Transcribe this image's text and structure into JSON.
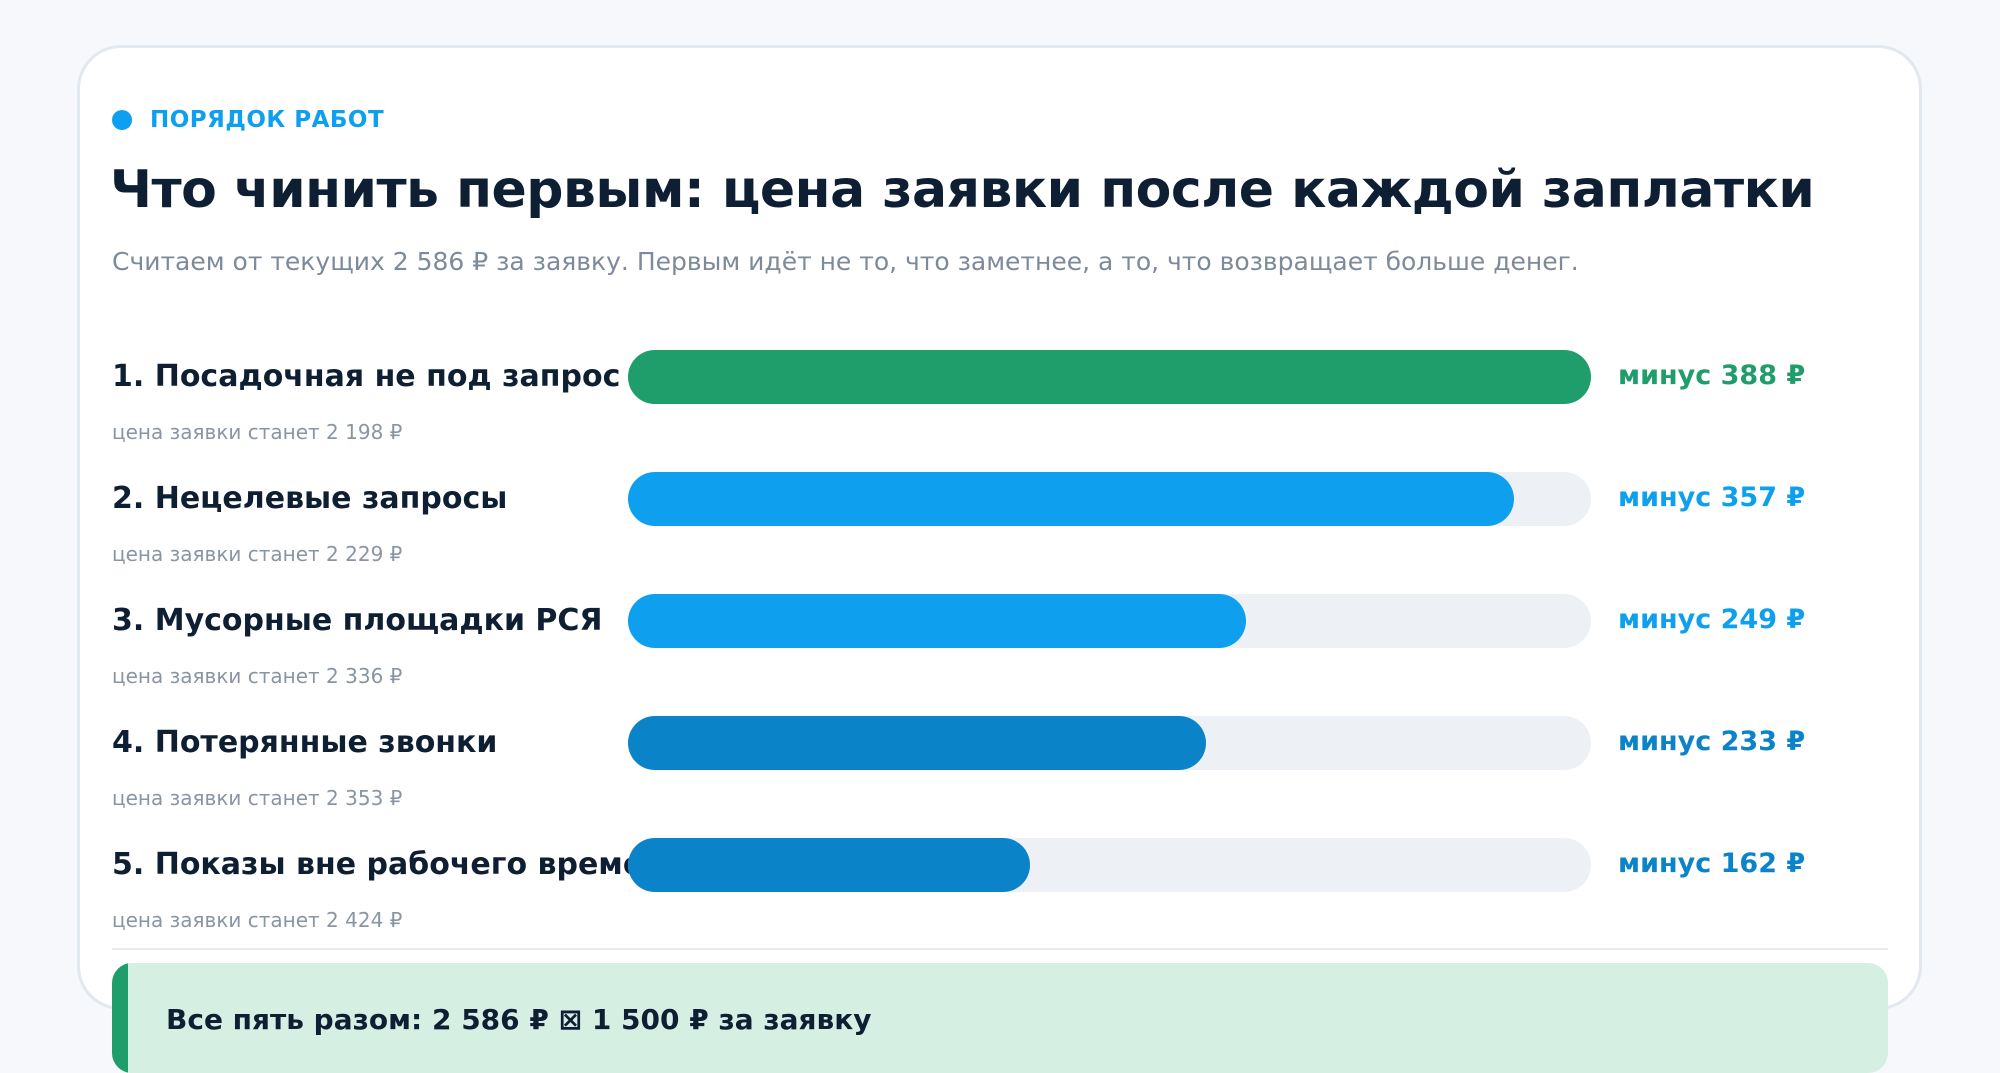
{
  "eyebrow": "ПОРЯДОК РАБОТ",
  "title": "Что чинить первым: цена заявки после каждой заплатки",
  "subtitle": "Считаем от текущих 2 586 ₽ за заявку. Первым идёт не то, что заметнее, а то, что возвращает больше денег.",
  "colors": {
    "green": "#1f9d6a",
    "blue": "#0ea0ee",
    "blue_dark": "#0b83c8",
    "track": "#edf1f5"
  },
  "chart_data": {
    "type": "bar",
    "orientation": "horizontal",
    "xlim": [
      0,
      388
    ],
    "grid": false,
    "categories": [
      "1. Посадочная не под запрос",
      "2. Нецелевые запросы",
      "3. Мусорные площадки РСЯ",
      "4. Потерянные звонки",
      "5. Показы вне рабочего времени"
    ],
    "values": [
      388,
      357,
      249,
      233,
      162
    ],
    "value_labels": [
      "минус 388 ₽",
      "минус 357 ₽",
      "минус 249 ₽",
      "минус 233 ₽",
      "минус 162 ₽"
    ],
    "sublabels": [
      "цена заявки станет 2 198 ₽",
      "цена заявки станет 2 229 ₽",
      "цена заявки станет 2 336 ₽",
      "цена заявки станет 2 353 ₽",
      "цена заявки станет 2 424 ₽"
    ],
    "bar_colors": [
      "#1f9d6a",
      "#0ea0ee",
      "#0ea0ee",
      "#0b83c8",
      "#0b83c8"
    ]
  },
  "summary": "Все пять разом: 2 586 ₽ ⊠ 1 500 ₽ за заявку"
}
